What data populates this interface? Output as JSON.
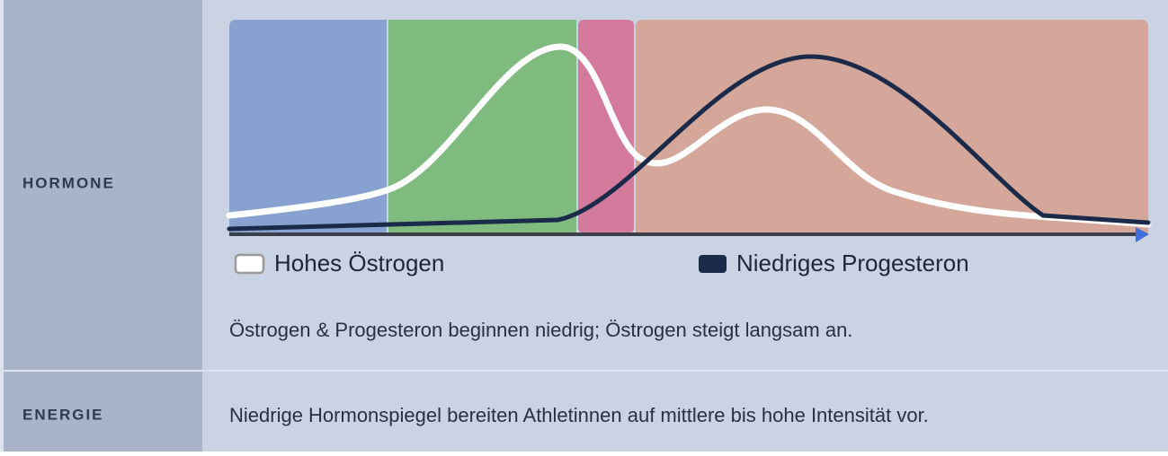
{
  "rows": [
    {
      "label": "HORMONE",
      "legend": [
        "Hohes Östrogen",
        "Niedriges Progesteron"
      ],
      "text": "Östrogen & Progesteron beginnen niedrig; Östrogen steigt langsam an."
    },
    {
      "label": "ENERGIE",
      "text": "Niedrige Hormonspiegel bereiten Athletinnen auf mittlere bis hohe Intensität vor."
    }
  ]
}
